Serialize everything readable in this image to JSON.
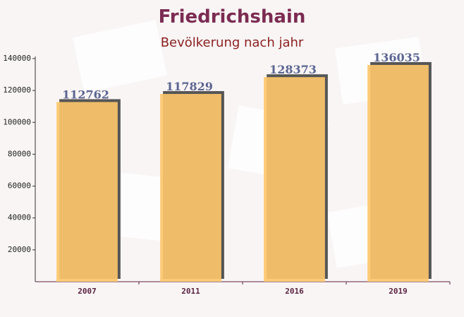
{
  "chart_data": {
    "type": "bar",
    "title": "Friedrichshain",
    "subtitle": "Bevölkerung nach jahr",
    "categories": [
      "2007",
      "2011",
      "2016",
      "2019"
    ],
    "values": [
      112762,
      117829,
      128373,
      136035
    ],
    "color": "#fdc76b",
    "label_color": "#5b6591",
    "ylim": [
      0,
      140000
    ],
    "yticks": [
      20000,
      40000,
      60000,
      80000,
      100000,
      120000,
      140000
    ]
  }
}
